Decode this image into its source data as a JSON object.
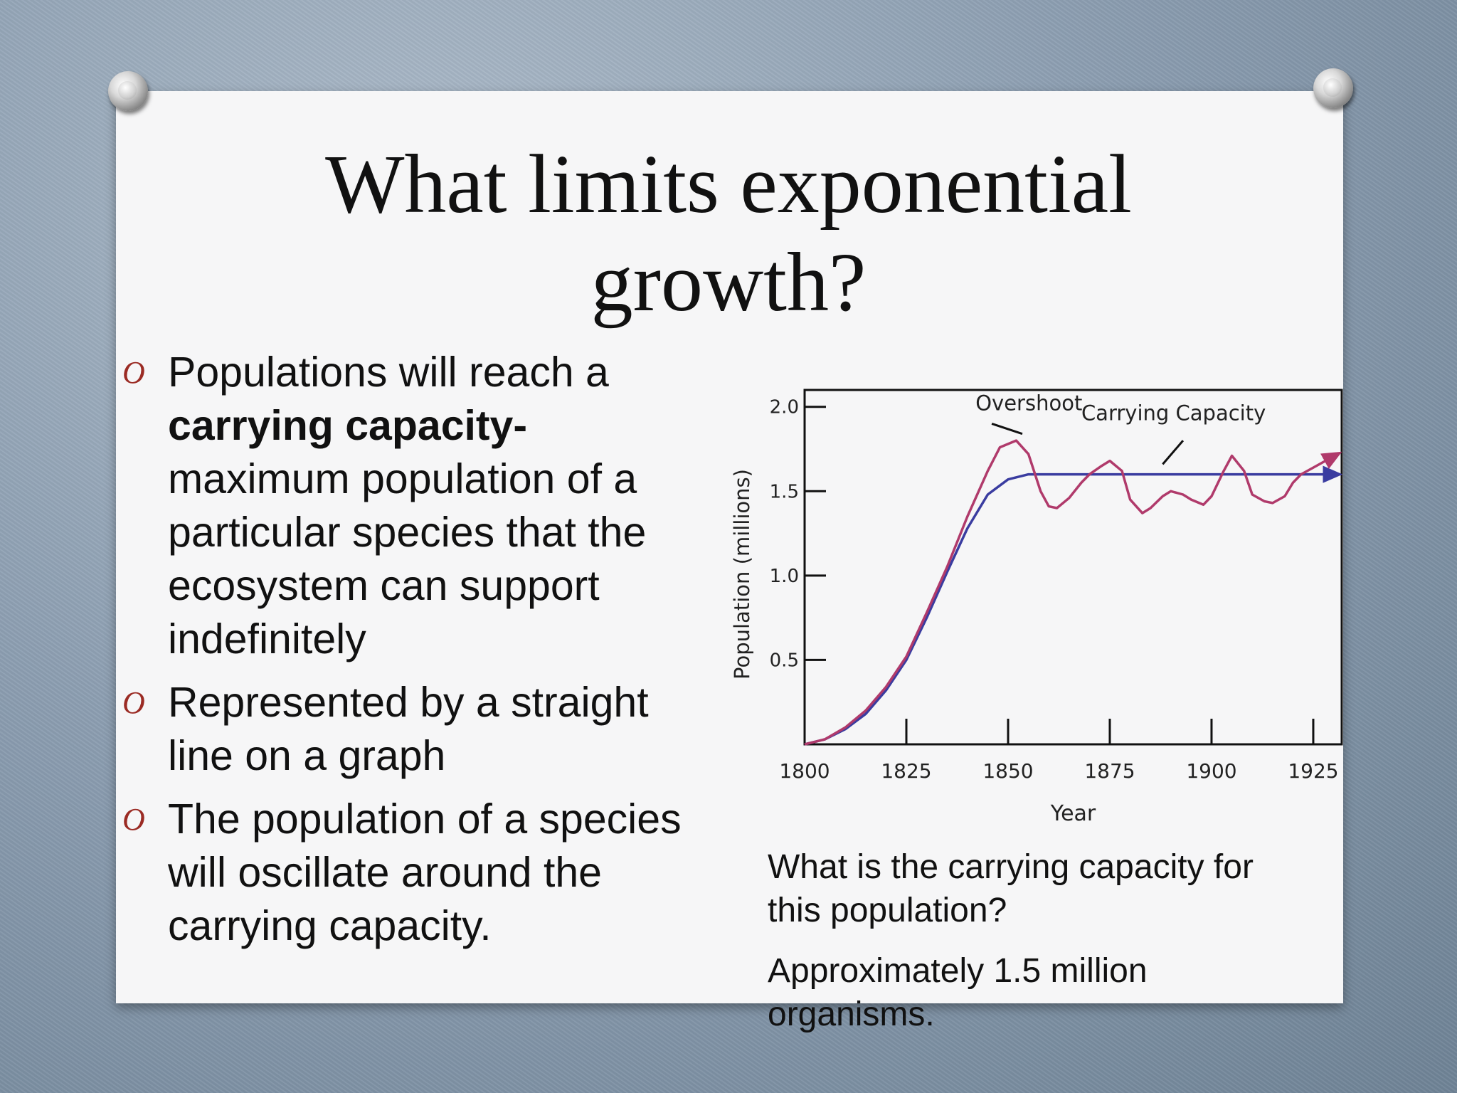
{
  "slide": {
    "title_line1": "What limits exponential",
    "title_line2": "growth?",
    "bullets": [
      {
        "parts": [
          {
            "text": "Populations will reach a ",
            "bold": false
          },
          {
            "text": "carrying capacity-",
            "bold": true
          },
          {
            "text": " maximum population of a particular species that the ecosystem can support indefinitely",
            "bold": false
          }
        ]
      },
      {
        "parts": [
          {
            "text": "Represented by a straight line on a graph",
            "bold": false
          }
        ]
      },
      {
        "parts": [
          {
            "text": "The population of  a species will oscillate around the carrying capacity.",
            "bold": false
          }
        ]
      }
    ],
    "question": "What is the carrying capacity for this population?",
    "answer": "Approximately 1.5 million organisms.",
    "marker_glyph": "O",
    "marker_color": "#9b2b24"
  },
  "chart_data": {
    "type": "line",
    "xlabel": "Year",
    "ylabel": "Population (millions)",
    "x_ticks": [
      1800,
      1825,
      1850,
      1875,
      1900,
      1925
    ],
    "y_ticks": [
      "0.5",
      "1.0",
      "1.5",
      "2.0"
    ],
    "xlim": [
      1800,
      1932
    ],
    "ylim": [
      0,
      2.1
    ],
    "annotations": [
      "Overshoot",
      "Carrying Capacity"
    ],
    "series": [
      {
        "color": "#b03a6b",
        "x": [
          1800,
          1805,
          1810,
          1815,
          1820,
          1825,
          1830,
          1835,
          1840,
          1845,
          1848,
          1852,
          1855,
          1858,
          1860,
          1862,
          1865,
          1868,
          1870,
          1873,
          1875,
          1878,
          1880,
          1883,
          1885,
          1888,
          1890,
          1893,
          1895,
          1898,
          1900,
          1903,
          1905,
          1908,
          1910,
          1913,
          1915,
          1918,
          1920,
          1922,
          1925,
          1928,
          1931
        ],
        "y": [
          0.0,
          0.03,
          0.1,
          0.2,
          0.34,
          0.52,
          0.78,
          1.05,
          1.35,
          1.62,
          1.76,
          1.8,
          1.72,
          1.5,
          1.41,
          1.4,
          1.46,
          1.55,
          1.6,
          1.65,
          1.68,
          1.62,
          1.45,
          1.37,
          1.4,
          1.47,
          1.5,
          1.48,
          1.45,
          1.42,
          1.47,
          1.62,
          1.71,
          1.62,
          1.48,
          1.44,
          1.43,
          1.47,
          1.55,
          1.6,
          1.64,
          1.68,
          1.72
        ]
      },
      {
        "color": "#3a3ca0",
        "x": [
          1800,
          1805,
          1810,
          1815,
          1820,
          1825,
          1830,
          1835,
          1840,
          1845,
          1850,
          1855,
          1858,
          1870,
          1890,
          1910,
          1931
        ],
        "y": [
          0.0,
          0.03,
          0.09,
          0.18,
          0.32,
          0.5,
          0.75,
          1.02,
          1.28,
          1.48,
          1.57,
          1.6,
          1.6,
          1.6,
          1.6,
          1.6,
          1.6
        ]
      }
    ]
  }
}
